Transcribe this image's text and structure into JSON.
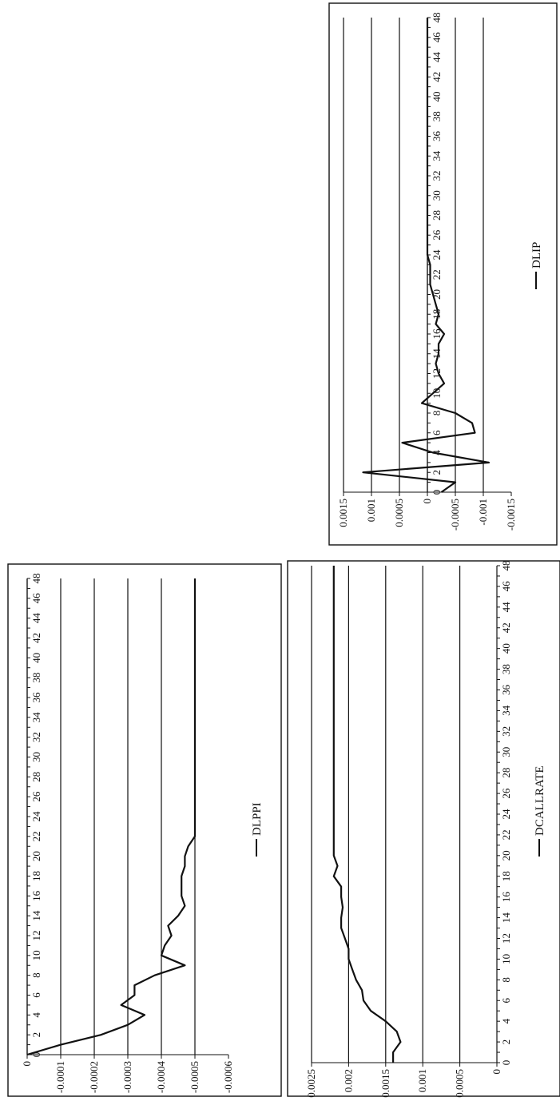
{
  "chart_data": [
    {
      "type": "line",
      "series": [
        {
          "name": "DLIP",
          "x": [
            0,
            1,
            2,
            3,
            4,
            5,
            6,
            7,
            8,
            9,
            10,
            11,
            12,
            13,
            14,
            15,
            16,
            17,
            18,
            19,
            20,
            21,
            22,
            23,
            24,
            25,
            26,
            27,
            28,
            29,
            30,
            31,
            32,
            33,
            34,
            35,
            36,
            37,
            38,
            39,
            40,
            41,
            42,
            43,
            44,
            45,
            46,
            47,
            48
          ],
          "values": [
            -0.00025,
            -0.0005,
            0.00115,
            -0.0011,
            -0.0001,
            0.00045,
            -0.00085,
            -0.0008,
            -0.0005,
            0.0001,
            -0.0001,
            -0.0003,
            -0.0002,
            -0.00015,
            -0.0002,
            -0.0002,
            -0.0003,
            -0.00015,
            -0.0002,
            -0.00015,
            -0.0001,
            -5e-05,
            -5e-05,
            -5e-05,
            0,
            0,
            0,
            0,
            0,
            0,
            0,
            0,
            0,
            0,
            0,
            0,
            0,
            0,
            0,
            0,
            0,
            0,
            0,
            0,
            0,
            0,
            0,
            0,
            0
          ]
        }
      ],
      "ylim": [
        -0.0015,
        0.0015
      ],
      "y_ticks": [
        "0.0015",
        "0.001",
        "0.0005",
        "0",
        "-0.0005",
        "-0.001",
        "-0.0015"
      ],
      "x_ticks": [
        "0",
        "2",
        "4",
        "6",
        "8",
        "10",
        "12",
        "14",
        "16",
        "18",
        "20",
        "22",
        "24",
        "26",
        "28",
        "30",
        "32",
        "34",
        "36",
        "38",
        "40",
        "42",
        "44",
        "46",
        "48"
      ],
      "grid": true,
      "legend": "bottom"
    },
    {
      "type": "line",
      "series": [
        {
          "name": "DLPPI",
          "x": [
            0,
            1,
            2,
            3,
            4,
            5,
            6,
            7,
            8,
            9,
            10,
            11,
            12,
            13,
            14,
            15,
            16,
            17,
            18,
            19,
            20,
            21,
            22,
            23,
            24,
            25,
            26,
            27,
            28,
            29,
            30,
            31,
            32,
            33,
            34,
            35,
            36,
            37,
            38,
            39,
            40,
            41,
            42,
            43,
            44,
            45,
            46,
            47,
            48
          ],
          "values": [
            0,
            -0.0001,
            -0.00022,
            -0.0003,
            -0.00035,
            -0.00028,
            -0.00032,
            -0.00032,
            -0.00038,
            -0.00047,
            -0.0004,
            -0.00041,
            -0.00043,
            -0.00042,
            -0.00045,
            -0.00047,
            -0.00046,
            -0.00046,
            -0.00046,
            -0.00047,
            -0.00047,
            -0.00048,
            -0.0005,
            -0.0005,
            -0.0005,
            -0.0005,
            -0.0005,
            -0.0005,
            -0.0005,
            -0.0005,
            -0.0005,
            -0.0005,
            -0.0005,
            -0.0005,
            -0.0005,
            -0.0005,
            -0.0005,
            -0.0005,
            -0.0005,
            -0.0005,
            -0.0005,
            -0.0005,
            -0.0005,
            -0.0005,
            -0.0005,
            -0.0005,
            -0.0005,
            -0.0005,
            -0.0005
          ]
        }
      ],
      "ylim": [
        -0.0006,
        0
      ],
      "y_ticks": [
        "0",
        "-0.0001",
        "-0.0002",
        "-0.0003",
        "-0.0004",
        "-0.0005",
        "-0.0006"
      ],
      "x_ticks": [
        "0",
        "2",
        "4",
        "6",
        "8",
        "10",
        "12",
        "14",
        "16",
        "18",
        "20",
        "22",
        "24",
        "26",
        "28",
        "30",
        "32",
        "34",
        "36",
        "38",
        "40",
        "42",
        "44",
        "46",
        "48"
      ],
      "grid": true,
      "legend": "bottom"
    },
    {
      "type": "line",
      "series": [
        {
          "name": "DCALLRATE",
          "x": [
            0,
            1,
            2,
            3,
            4,
            5,
            6,
            7,
            8,
            9,
            10,
            11,
            12,
            13,
            14,
            15,
            16,
            17,
            18,
            19,
            20,
            21,
            22,
            23,
            24,
            25,
            26,
            27,
            28,
            29,
            30,
            31,
            32,
            33,
            34,
            35,
            36,
            37,
            38,
            39,
            40,
            41,
            42,
            43,
            44,
            45,
            46,
            47,
            48
          ],
          "values": [
            0.0014,
            0.0014,
            0.0013,
            0.00135,
            0.0015,
            0.0017,
            0.0018,
            0.00182,
            0.0019,
            0.00195,
            0.002,
            0.002,
            0.00205,
            0.0021,
            0.0021,
            0.00208,
            0.0021,
            0.0021,
            0.0022,
            0.00215,
            0.0022,
            0.0022,
            0.0022,
            0.0022,
            0.0022,
            0.0022,
            0.0022,
            0.0022,
            0.0022,
            0.0022,
            0.0022,
            0.0022,
            0.0022,
            0.0022,
            0.0022,
            0.0022,
            0.0022,
            0.0022,
            0.0022,
            0.0022,
            0.0022,
            0.0022,
            0.0022,
            0.0022,
            0.0022,
            0.0022,
            0.0022,
            0.0022,
            0.0022
          ]
        }
      ],
      "ylim": [
        0,
        0.0025
      ],
      "y_ticks": [
        "0.0025",
        "0.002",
        "0.0015",
        "0.001",
        "0.0005",
        "0"
      ],
      "x_ticks": [
        "0",
        "2",
        "4",
        "6",
        "8",
        "10",
        "12",
        "14",
        "16",
        "18",
        "20",
        "22",
        "24",
        "26",
        "28",
        "30",
        "32",
        "34",
        "36",
        "38",
        "40",
        "42",
        "44",
        "46",
        "48"
      ],
      "grid": true,
      "legend": "bottom"
    }
  ]
}
